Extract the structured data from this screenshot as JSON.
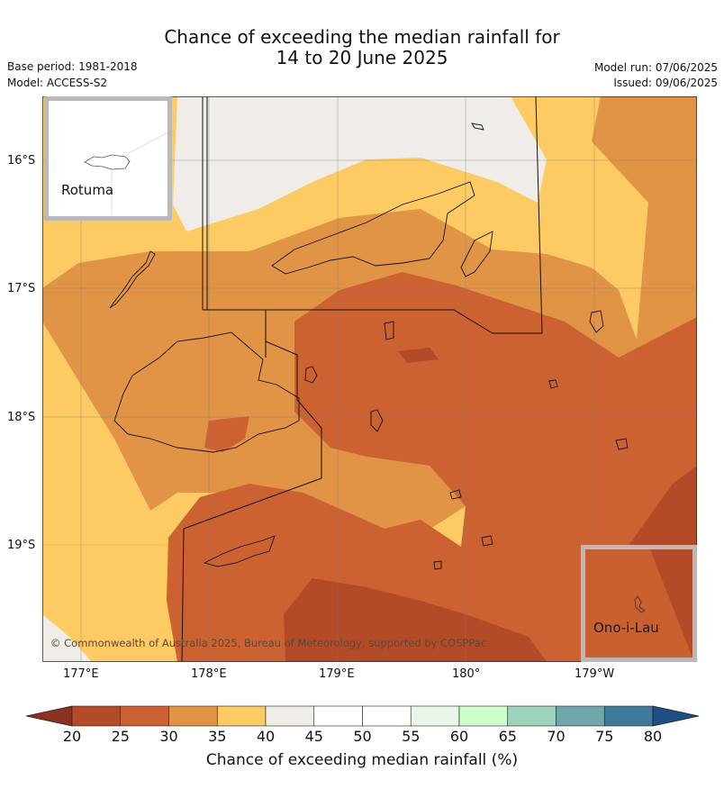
{
  "title": {
    "line1": "Chance of exceeding the median rainfall for",
    "line2": "14 to 20 June 2025"
  },
  "meta": {
    "base_period": "Base period: 1981-2018",
    "model": "Model: ACCESS-S2",
    "model_run": "Model run: 07/06/2025",
    "issued": "Issued: 09/06/2025"
  },
  "map": {
    "lat_labels": [
      "16°S",
      "17°S",
      "18°S",
      "19°S"
    ],
    "lon_labels": [
      "177°E",
      "178°E",
      "179°E",
      "180°",
      "179°W"
    ],
    "copyright": "© Commonwealth of Australia 2025, Bureau of Meteorology, supported by COSPPac",
    "insets": {
      "rotuma": "Rotuma",
      "ono_i_lau": "Ono-i-Lau"
    }
  },
  "colors": {
    "bin_20_25": "#b34a28",
    "bin_25_30": "#cc6232",
    "bin_30_35": "#e19446",
    "bin_35_40": "#fdca63",
    "bin_40_45": "#f0ece7",
    "bin_45_50": "#ffffff",
    "bin_50_55": "#ffffff",
    "bin_55_60": "#eaf5e9",
    "bin_60_65": "#ccffcc",
    "bin_65_70": "#9dd3bd",
    "bin_70_75": "#6ea6a9",
    "bin_75_80": "#3f7a9a",
    "over_80": "#1e4f84",
    "under_20": "#8a3120"
  },
  "colorbar": {
    "ticks": [
      "20",
      "25",
      "30",
      "35",
      "40",
      "45",
      "50",
      "55",
      "60",
      "65",
      "70",
      "75",
      "80"
    ],
    "label": "Chance of exceeding median rainfall (%)"
  }
}
